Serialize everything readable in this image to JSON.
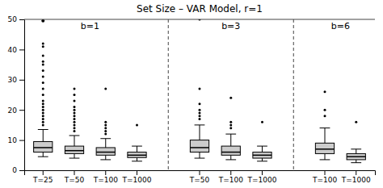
{
  "chart_data": {
    "type": "box",
    "title": "Set Size – VAR Model, r=1",
    "ylim": [
      0,
      50
    ],
    "yticks": [
      0,
      10,
      20,
      30,
      40,
      50
    ],
    "hline": 50,
    "color": "#cccccc",
    "groups": [
      {
        "label": "b=1",
        "categories": [
          "T=25",
          "T=50",
          "T=100",
          "T=1000"
        ],
        "boxes": [
          {
            "q1": 6.0,
            "median": 7.5,
            "q3": 9.5,
            "whisker_low": 4.5,
            "whisker_high": 13.5,
            "outliers": [
              15,
              16,
              17,
              18,
              19,
              20,
              21,
              22,
              23,
              25,
              27,
              29,
              31,
              33,
              35,
              36,
              38,
              41,
              42
            ],
            "extra_points": [
              49.5
            ]
          },
          {
            "q1": 5.5,
            "median": 6.5,
            "q3": 8.0,
            "whisker_low": 4.0,
            "whisker_high": 11.5,
            "outliers": [
              13,
              14,
              15,
              16,
              17,
              18,
              19,
              20,
              21,
              23,
              25,
              27
            ]
          },
          {
            "q1": 5.0,
            "median": 6.0,
            "q3": 7.5,
            "whisker_low": 3.5,
            "whisker_high": 10.5,
            "outliers": [
              12,
              13,
              14,
              15,
              16,
              27
            ]
          },
          {
            "q1": 4.2,
            "median": 5.0,
            "q3": 6.0,
            "whisker_low": 3.0,
            "whisker_high": 8.0,
            "outliers": [
              15
            ]
          }
        ]
      },
      {
        "label": "b=3",
        "categories": [
          "T=50",
          "T=100",
          "T=1000"
        ],
        "boxes": [
          {
            "q1": 6.0,
            "median": 7.5,
            "q3": 10.0,
            "whisker_low": 4.0,
            "whisker_high": 15.0,
            "outliers": [
              17,
              18,
              19,
              20,
              22,
              27,
              50
            ]
          },
          {
            "q1": 5.0,
            "median": 6.0,
            "q3": 8.0,
            "whisker_low": 3.5,
            "whisker_high": 12.0,
            "outliers": [
              14,
              15,
              16,
              24
            ]
          },
          {
            "q1": 4.0,
            "median": 5.0,
            "q3": 6.0,
            "whisker_low": 3.0,
            "whisker_high": 8.0,
            "outliers": [
              16
            ]
          }
        ]
      },
      {
        "label": "b=6",
        "categories": [
          "T=100",
          "T=1000"
        ],
        "boxes": [
          {
            "q1": 5.5,
            "median": 7.0,
            "q3": 9.0,
            "whisker_low": 3.5,
            "whisker_high": 14.0,
            "outliers": [
              18,
              20,
              26
            ]
          },
          {
            "q1": 3.5,
            "median": 4.5,
            "q3": 5.5,
            "whisker_low": 2.5,
            "whisker_high": 7.0,
            "outliers": [
              16
            ]
          }
        ]
      }
    ]
  }
}
